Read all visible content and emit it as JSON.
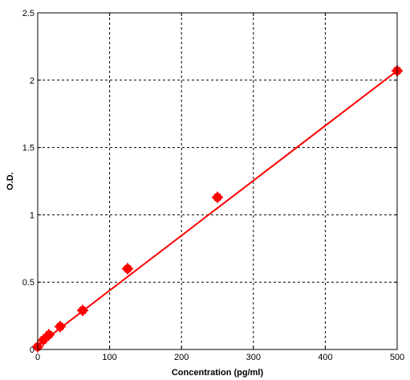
{
  "chart_data": {
    "type": "scatter",
    "xlabel": "Concentration (pg/ml)",
    "ylabel": "O.D.",
    "xlim": [
      0,
      500
    ],
    "ylim": [
      0,
      2.5
    ],
    "x_ticks": [
      0,
      100,
      200,
      300,
      400,
      500
    ],
    "y_ticks": [
      0,
      0.5,
      1,
      1.5,
      2,
      2.5
    ],
    "x_tick_labels": [
      "0",
      "100",
      "200",
      "300",
      "400",
      "500"
    ],
    "y_tick_labels": [
      "0",
      "0.5",
      "1",
      "1.5",
      "2",
      "2.5"
    ],
    "grid": true,
    "series": [
      {
        "points": [
          {
            "x": 0,
            "y": 0.02
          },
          {
            "x": 7.8,
            "y": 0.07
          },
          {
            "x": 15.6,
            "y": 0.11
          },
          {
            "x": 31.25,
            "y": 0.17
          },
          {
            "x": 62.5,
            "y": 0.29
          },
          {
            "x": 125,
            "y": 0.6
          },
          {
            "x": 250,
            "y": 1.13
          },
          {
            "x": 500,
            "y": 2.07
          }
        ],
        "fit_line": {
          "x": [
            0,
            500
          ],
          "y": [
            0.03,
            2.07
          ]
        }
      }
    ],
    "colors": {
      "series": "#ff0000",
      "grid": "#000000",
      "axes": "#000000"
    }
  }
}
